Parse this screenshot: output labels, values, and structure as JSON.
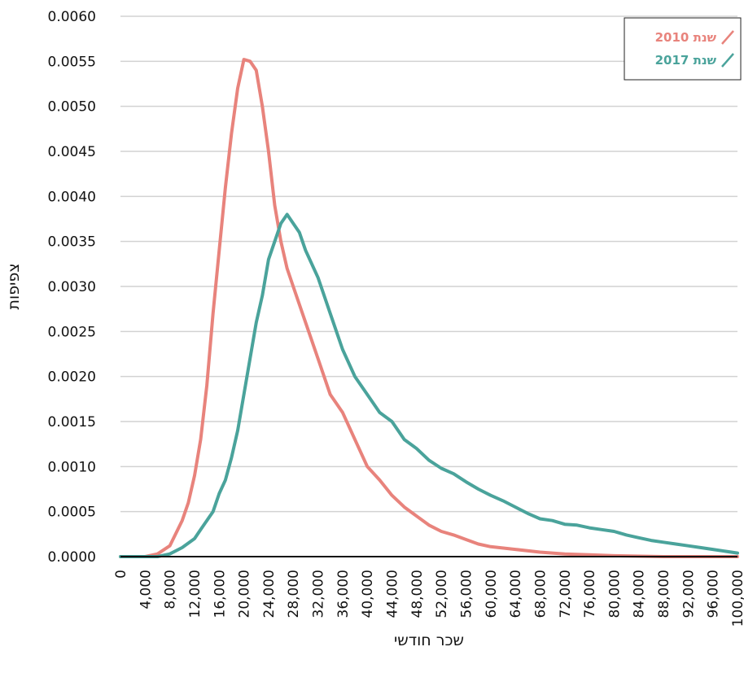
{
  "chart_data": {
    "type": "line",
    "title": "",
    "xlabel": "שכר חודשי",
    "ylabel": "צפיפות",
    "xlim": [
      0,
      100000
    ],
    "ylim": [
      0,
      0.006
    ],
    "grid": "horizontal",
    "legend_position": "top-right",
    "x_ticks": [
      "0",
      "4,000",
      "8,000",
      "12,000",
      "16,000",
      "20,000",
      "24,000",
      "28,000",
      "32,000",
      "36,000",
      "40,000",
      "44,000",
      "48,000",
      "52,000",
      "56,000",
      "60,000",
      "64,000",
      "68,000",
      "72,000",
      "76,000",
      "80,000",
      "84,000",
      "88,000",
      "92,000",
      "96,000",
      "100,000"
    ],
    "y_ticks": [
      "0.0000",
      "0.0005",
      "0.0010",
      "0.0015",
      "0.0020",
      "0.0025",
      "0.0030",
      "0.0035",
      "0.0040",
      "0.0045",
      "0.0050",
      "0.0055",
      "0.0060"
    ],
    "series": [
      {
        "name": "שנת 2010",
        "color": "#e8837c",
        "points": [
          [
            0,
            0.0
          ],
          [
            4000,
            0.0
          ],
          [
            6000,
            3e-05
          ],
          [
            8000,
            0.00012
          ],
          [
            10000,
            0.0004
          ],
          [
            11000,
            0.0006
          ],
          [
            12000,
            0.0009
          ],
          [
            13000,
            0.0013
          ],
          [
            14000,
            0.0019
          ],
          [
            15000,
            0.0027
          ],
          [
            16000,
            0.0034
          ],
          [
            17000,
            0.0041
          ],
          [
            18000,
            0.0047
          ],
          [
            19000,
            0.0052
          ],
          [
            20000,
            0.00552
          ],
          [
            21000,
            0.0055
          ],
          [
            22000,
            0.0054
          ],
          [
            23000,
            0.005
          ],
          [
            24000,
            0.0045
          ],
          [
            25000,
            0.0039
          ],
          [
            26000,
            0.0035
          ],
          [
            27000,
            0.0032
          ],
          [
            28000,
            0.003
          ],
          [
            30000,
            0.0026
          ],
          [
            32000,
            0.0022
          ],
          [
            34000,
            0.0018
          ],
          [
            36000,
            0.0016
          ],
          [
            38000,
            0.0013
          ],
          [
            40000,
            0.001
          ],
          [
            42000,
            0.00085
          ],
          [
            44000,
            0.00068
          ],
          [
            46000,
            0.00055
          ],
          [
            48000,
            0.00045
          ],
          [
            50000,
            0.00035
          ],
          [
            52000,
            0.00028
          ],
          [
            54000,
            0.00024
          ],
          [
            56000,
            0.00019
          ],
          [
            58000,
            0.00014
          ],
          [
            60000,
            0.00011
          ],
          [
            64000,
            8e-05
          ],
          [
            68000,
            5e-05
          ],
          [
            72000,
            3e-05
          ],
          [
            76000,
            2e-05
          ],
          [
            80000,
            1e-05
          ],
          [
            88000,
            0.0
          ],
          [
            100000,
            0.0
          ]
        ]
      },
      {
        "name": "שנת 2017",
        "color": "#4aa39b",
        "points": [
          [
            0,
            0.0
          ],
          [
            6000,
            0.0
          ],
          [
            8000,
            3e-05
          ],
          [
            10000,
            0.0001
          ],
          [
            12000,
            0.0002
          ],
          [
            13000,
            0.0003
          ],
          [
            14000,
            0.0004
          ],
          [
            15000,
            0.0005
          ],
          [
            16000,
            0.0007
          ],
          [
            17000,
            0.00085
          ],
          [
            18000,
            0.0011
          ],
          [
            19000,
            0.0014
          ],
          [
            20000,
            0.0018
          ],
          [
            21000,
            0.0022
          ],
          [
            22000,
            0.0026
          ],
          [
            23000,
            0.0029
          ],
          [
            24000,
            0.0033
          ],
          [
            25000,
            0.0035
          ],
          [
            26000,
            0.0037
          ],
          [
            27000,
            0.0038
          ],
          [
            28000,
            0.0037
          ],
          [
            29000,
            0.0036
          ],
          [
            30000,
            0.0034
          ],
          [
            32000,
            0.0031
          ],
          [
            34000,
            0.0027
          ],
          [
            36000,
            0.0023
          ],
          [
            38000,
            0.002
          ],
          [
            40000,
            0.0018
          ],
          [
            42000,
            0.0016
          ],
          [
            44000,
            0.0015
          ],
          [
            46000,
            0.0013
          ],
          [
            48000,
            0.0012
          ],
          [
            50000,
            0.00107
          ],
          [
            52000,
            0.00098
          ],
          [
            54000,
            0.00092
          ],
          [
            56000,
            0.00083
          ],
          [
            58000,
            0.00075
          ],
          [
            60000,
            0.00068
          ],
          [
            62000,
            0.00062
          ],
          [
            64000,
            0.00055
          ],
          [
            66000,
            0.00048
          ],
          [
            68000,
            0.00042
          ],
          [
            70000,
            0.0004
          ],
          [
            72000,
            0.00036
          ],
          [
            74000,
            0.00035
          ],
          [
            76000,
            0.00032
          ],
          [
            78000,
            0.0003
          ],
          [
            80000,
            0.00028
          ],
          [
            82000,
            0.00024
          ],
          [
            84000,
            0.00021
          ],
          [
            86000,
            0.00018
          ],
          [
            88000,
            0.00016
          ],
          [
            90000,
            0.00014
          ],
          [
            92000,
            0.00012
          ],
          [
            94000,
            0.0001
          ],
          [
            96000,
            8e-05
          ],
          [
            98000,
            6e-05
          ],
          [
            100000,
            4e-05
          ]
        ]
      }
    ]
  }
}
